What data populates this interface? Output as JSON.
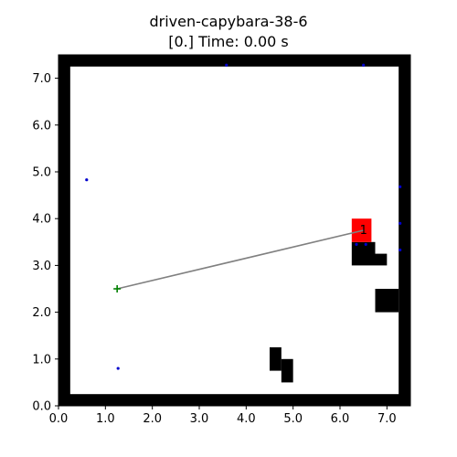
{
  "figure": {
    "title": "driven-capybara-38-6",
    "subtitle": "[0.] Time: 0.00 s"
  },
  "chart_data": {
    "type": "scatter",
    "title": "driven-capybara-38-6",
    "subtitle": "[0.] Time: 0.00 s",
    "xlabel": "",
    "ylabel": "",
    "xlim": [
      0.0,
      7.5
    ],
    "ylim": [
      0.0,
      7.5
    ],
    "grid": false,
    "x_ticks": [
      "0.0",
      "1.0",
      "2.0",
      "3.0",
      "4.0",
      "5.0",
      "6.0",
      "7.0"
    ],
    "y_ticks": [
      "0.0",
      "1.0",
      "2.0",
      "3.0",
      "4.0",
      "5.0",
      "6.0",
      "7.0"
    ],
    "walls": {
      "color": "#000000",
      "rects": [
        {
          "x": 0.0,
          "y": 0.0,
          "w": 7.5,
          "h": 0.25
        },
        {
          "x": 0.0,
          "y": 7.25,
          "w": 7.5,
          "h": 0.25
        },
        {
          "x": 0.0,
          "y": 0.0,
          "w": 0.25,
          "h": 7.5
        },
        {
          "x": 7.25,
          "y": 0.0,
          "w": 0.25,
          "h": 7.5
        }
      ]
    },
    "obstacles": {
      "color": "#000000",
      "rects": [
        {
          "x": 6.25,
          "y": 3.0,
          "w": 0.5,
          "h": 0.5
        },
        {
          "x": 6.75,
          "y": 3.0,
          "w": 0.25,
          "h": 0.25
        },
        {
          "x": 6.75,
          "y": 2.0,
          "w": 0.5,
          "h": 0.5
        },
        {
          "x": 4.5,
          "y": 0.75,
          "w": 0.25,
          "h": 0.5
        },
        {
          "x": 4.75,
          "y": 0.5,
          "w": 0.25,
          "h": 0.5
        }
      ]
    },
    "goal": {
      "x": 6.25,
      "y": 3.5,
      "w": 0.42,
      "h": 0.5,
      "color": "#ff0000"
    },
    "robot": {
      "x": 6.5,
      "y": 3.75,
      "label": "1",
      "color": "#000000"
    },
    "start": {
      "x": 1.25,
      "y": 2.5,
      "marker": "+",
      "color": "#008000"
    },
    "path": {
      "from": [
        1.25,
        2.5
      ],
      "to": [
        6.5,
        3.75
      ],
      "color": "#808080"
    },
    "points": {
      "color": "#0000cc",
      "x": [
        3.58,
        6.5,
        0.6,
        7.28,
        7.28,
        7.28,
        1.27,
        6.35,
        6.55
      ],
      "y": [
        7.28,
        7.28,
        4.83,
        4.68,
        3.9,
        3.33,
        0.8,
        3.45,
        3.45
      ]
    }
  }
}
